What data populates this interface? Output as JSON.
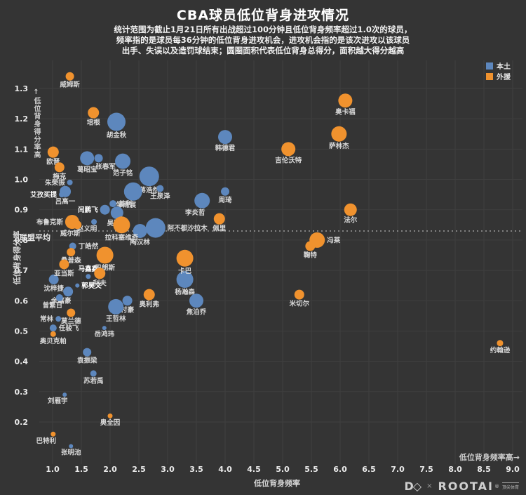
{
  "title": "CBA球员低位背身进攻情况",
  "subtitle_lines": [
    "统计范围为截止1月21日所有出战超过100分钟且低位背身频率超过1.0次的球员，",
    "频率指的是球员每36分钟的低位背身进攻机会，进攻机会指的是该次进攻以该球员",
    "出手、失误以及造罚球结束；圆圈面积代表低位背身总得分，面积越大得分越高"
  ],
  "legend": {
    "domestic": "本土",
    "foreign": "外援",
    "domestic_color": "#5d87bd",
    "foreign_color": "#f0922e"
  },
  "annotations": {
    "y_high": "↑低位背身得分率高",
    "x_high": "低位背身频率高→",
    "league_avg": "联盟平均"
  },
  "footer_logo": {
    "mark": "D◇",
    "times": "×",
    "brand": "ROOTAI",
    "reg": "®",
    "sub": "顶尖体育"
  },
  "chart_data": {
    "type": "scatter",
    "title": "CBA球员低位背身进攻情况",
    "background": "#343434",
    "grid_color": "#3f3f3f",
    "x_axis": {
      "label": "低位背身频率",
      "min": 1.0,
      "max": 9.0,
      "ticks": [
        "1.0",
        "1.5",
        "2.0",
        "2.5",
        "3.0",
        "3.5",
        "4.0",
        "4.5",
        "5.0",
        "5.5",
        "6.0",
        "6.5",
        "7.0",
        "7.5",
        "8.0",
        "8.5",
        "9.0"
      ]
    },
    "y_axis": {
      "label": "低位背身得分率",
      "min": 0.2,
      "max": 1.3,
      "ticks": [
        "0.2",
        "0.3",
        "0.4",
        "0.5",
        "0.6",
        "0.7",
        "0.8",
        "0.9",
        "1.0",
        "1.1",
        "1.2",
        "1.3"
      ]
    },
    "league_average": 0.83,
    "bubble_size_meaning": "圆圈面积代表低位背身总得分，面积越大得分越高",
    "series": [
      {
        "name": "本土",
        "color": "#5d87bd",
        "points": [
          {
            "name": "胡金秋",
            "x": 2.11,
            "y": 1.19,
            "r": 13,
            "lp": "b"
          },
          {
            "name": "韩德君",
            "x": 4.0,
            "y": 1.14,
            "r": 10,
            "lp": "b"
          },
          {
            "name": "葛昭宝",
            "x": 1.6,
            "y": 1.07,
            "r": 10,
            "lp": "b"
          },
          {
            "name": "张春军",
            "x": 1.8,
            "y": 1.07,
            "r": 6,
            "lp": "br"
          },
          {
            "name": "范子铭",
            "x": 2.22,
            "y": 1.06,
            "r": 11,
            "lp": "b"
          },
          {
            "name": "蒋浩然",
            "x": 2.68,
            "y": 1.01,
            "r": 14,
            "lp": "b"
          },
          {
            "name": "朱荣振",
            "x": 1.3,
            "y": 0.99,
            "r": 4,
            "lp": "l"
          },
          {
            "name": "吕高一",
            "x": 1.22,
            "y": 0.96,
            "r": 8,
            "lp": "b"
          },
          {
            "name": "艾孜买提",
            "x": 1.16,
            "y": 0.95,
            "r": 4,
            "lp": "l",
            "bold": true
          },
          {
            "name": "周琦",
            "x": 4.0,
            "y": 0.96,
            "r": 6,
            "lp": "b"
          },
          {
            "name": "王泉泽",
            "x": 2.87,
            "y": 0.97,
            "r": 5,
            "lp": "b"
          },
          {
            "name": "邹雨宸",
            "x": 2.4,
            "y": 0.96,
            "r": 13,
            "lp": "bl"
          },
          {
            "name": "盖利",
            "x": 2.05,
            "y": 0.92,
            "r": 5,
            "lp": "r"
          },
          {
            "name": "闫鹏飞",
            "x": 1.91,
            "y": 0.9,
            "r": 7,
            "lp": "l",
            "bold": true
          },
          {
            "name": "吴冠希",
            "x": 2.12,
            "y": 0.89,
            "r": 9,
            "lp": "b"
          },
          {
            "name": "李炎哲",
            "x": 3.6,
            "y": 0.93,
            "r": 11,
            "lp": "bl"
          },
          {
            "name": "赵义明",
            "x": 1.72,
            "y": 0.86,
            "r": 4,
            "lp": "bl"
          },
          {
            "name": "陶汉林",
            "x": 2.52,
            "y": 0.83,
            "r": 10,
            "lp": "b"
          },
          {
            "name": "阿不都沙拉木",
            "x": 2.79,
            "y": 0.84,
            "r": 14,
            "lp": "r"
          },
          {
            "name": "丁皓然",
            "x": 1.35,
            "y": 0.78,
            "r": 5,
            "lp": "r"
          },
          {
            "name": "马鑫鑫",
            "x": 1.62,
            "y": 0.68,
            "r": 3.5,
            "lp": "t",
            "bold": true
          },
          {
            "name": "沈梓捷",
            "x": 1.02,
            "y": 0.67,
            "r": 7,
            "lp": "b"
          },
          {
            "name": "郭昊文",
            "x": 1.43,
            "y": 0.65,
            "r": 3,
            "lp": "r",
            "bold": true
          },
          {
            "name": "杨瀚森",
            "x": 3.3,
            "y": 0.67,
            "r": 12,
            "lp": "b"
          },
          {
            "name": "余嘉豪",
            "x": 1.27,
            "y": 0.63,
            "r": 7,
            "lp": "bl"
          },
          {
            "name": "曾繁日",
            "x": 1.12,
            "y": 0.61,
            "r": 5,
            "lp": "bl"
          },
          {
            "name": "付豪",
            "x": 2.3,
            "y": 0.6,
            "r": 7,
            "lp": "b"
          },
          {
            "name": "焦泊乔",
            "x": 3.5,
            "y": 0.6,
            "r": 10,
            "lp": "b"
          },
          {
            "name": "王哲林",
            "x": 2.1,
            "y": 0.58,
            "r": 11,
            "lp": "b"
          },
          {
            "name": "常林",
            "x": 1.1,
            "y": 0.54,
            "r": 4,
            "lp": "l"
          },
          {
            "name": "任骏飞",
            "x": 1.01,
            "y": 0.51,
            "r": 5,
            "lp": "r"
          },
          {
            "name": "岳鸿玮",
            "x": 1.9,
            "y": 0.51,
            "r": 3,
            "lp": "b"
          },
          {
            "name": "袁振梁",
            "x": 1.6,
            "y": 0.43,
            "r": 6,
            "lp": "b"
          },
          {
            "name": "苏若禹",
            "x": 1.71,
            "y": 0.36,
            "r": 4.5,
            "lp": "b"
          },
          {
            "name": "刘雁宇",
            "x": 1.21,
            "y": 0.29,
            "r": 3,
            "lp": "bl"
          },
          {
            "name": "张明池",
            "x": 1.32,
            "y": 0.12,
            "r": 3,
            "lp": "b"
          }
        ]
      },
      {
        "name": "外援",
        "color": "#f0922e",
        "points": [
          {
            "name": "威姆斯",
            "x": 1.3,
            "y": 1.34,
            "r": 6,
            "lp": "b"
          },
          {
            "name": "奥卡福",
            "x": 6.09,
            "y": 1.26,
            "r": 10,
            "lp": "b"
          },
          {
            "name": "培根",
            "x": 1.71,
            "y": 1.22,
            "r": 8,
            "lp": "b"
          },
          {
            "name": "萨林杰",
            "x": 5.98,
            "y": 1.15,
            "r": 11,
            "lp": "b"
          },
          {
            "name": "吉伦沃特",
            "x": 5.1,
            "y": 1.1,
            "r": 10,
            "lp": "b"
          },
          {
            "name": "欧晋",
            "x": 1.01,
            "y": 1.09,
            "r": 8,
            "lp": "b"
          },
          {
            "name": "梅克",
            "x": 1.12,
            "y": 1.04,
            "r": 7,
            "lp": "b"
          },
          {
            "name": "佩里",
            "x": 3.9,
            "y": 0.87,
            "r": 8,
            "lp": "b"
          },
          {
            "name": "法尔",
            "x": 6.18,
            "y": 0.9,
            "r": 9,
            "lp": "b"
          },
          {
            "name": "布鲁克斯",
            "x": 1.34,
            "y": 0.86,
            "r": 10,
            "lp": "l"
          },
          {
            "name": "威尔斯",
            "x": 1.43,
            "y": 0.85,
            "r": 6,
            "lp": "bl"
          },
          {
            "name": "拉科塞维奇",
            "x": 2.2,
            "y": 0.85,
            "r": 12,
            "lp": "b"
          },
          {
            "name": "冯莱",
            "x": 5.6,
            "y": 0.8,
            "r": 11,
            "lp": "r"
          },
          {
            "name": "鞠特",
            "x": 5.48,
            "y": 0.78,
            "r": 7,
            "lp": "b"
          },
          {
            "name": "桑普森",
            "x": 1.32,
            "y": 0.76,
            "r": 6,
            "lp": "b"
          },
          {
            "name": "巴朗斯",
            "x": 1.91,
            "y": 0.75,
            "r": 12,
            "lp": "b"
          },
          {
            "name": "卡巴",
            "x": 3.3,
            "y": 0.74,
            "r": 12,
            "lp": "b"
          },
          {
            "name": "亚当斯",
            "x": 1.2,
            "y": 0.72,
            "r": 7,
            "lp": "b"
          },
          {
            "name": "利夫",
            "x": 1.82,
            "y": 0.69,
            "r": 8,
            "lp": "b"
          },
          {
            "name": "奥利弗",
            "x": 2.68,
            "y": 0.62,
            "r": 8,
            "lp": "b"
          },
          {
            "name": "米切尔",
            "x": 5.29,
            "y": 0.62,
            "r": 7,
            "lp": "b"
          },
          {
            "name": "莫兰德",
            "x": 1.32,
            "y": 0.56,
            "r": 6,
            "lp": "b"
          },
          {
            "name": "奥贝克帕",
            "x": 1.01,
            "y": 0.49,
            "r": 4,
            "lp": "b"
          },
          {
            "name": "约翰逊",
            "x": 8.78,
            "y": 0.46,
            "r": 4.5,
            "lp": "b"
          },
          {
            "name": "奥全因",
            "x": 2.0,
            "y": 0.22,
            "r": 3.5,
            "lp": "b"
          },
          {
            "name": "巴特利",
            "x": 1.01,
            "y": 0.16,
            "r": 3.5,
            "lp": "bl"
          }
        ]
      }
    ]
  }
}
